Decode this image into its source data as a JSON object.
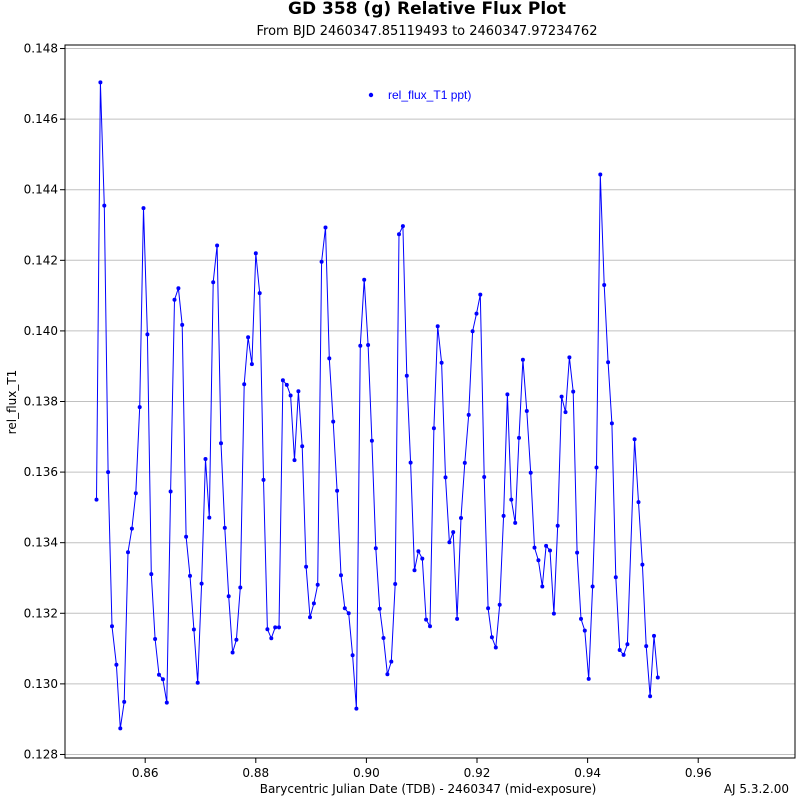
{
  "footer": {
    "version": "AJ 5.3.2.00"
  },
  "colors": {
    "series": "#0000ff",
    "grid": "#c0c0c0",
    "axis": "#000000"
  },
  "chart_data": {
    "type": "line",
    "title": "GD 358 (g) Relative Flux Plot",
    "subtitle": "From BJD 2460347.85119493 to 2460347.97234762",
    "xlabel": "Barycentric Julian Date (TDB) - 2460347 (mid-exposure)",
    "ylabel": "rel_flux_T1",
    "xlim": [
      0.8455,
      0.9775
    ],
    "ylim": [
      0.1279,
      0.1481
    ],
    "x_ticks": [
      0.86,
      0.88,
      0.9,
      0.92,
      0.94,
      0.96
    ],
    "x_tick_labels": [
      "0.86",
      "0.88",
      "0.90",
      "0.92",
      "0.94",
      "0.96"
    ],
    "y_ticks": [
      0.128,
      0.13,
      0.132,
      0.134,
      0.136,
      0.138,
      0.14,
      0.142,
      0.144,
      0.146,
      0.148
    ],
    "y_tick_labels": [
      "0.128",
      "0.130",
      "0.132",
      "0.134",
      "0.136",
      "0.138",
      "0.140",
      "0.142",
      "0.144",
      "0.146",
      "0.148"
    ],
    "grid": "horizontal",
    "legend_position": "top-center",
    "series": [
      {
        "name": "rel_flux_T1 ppt)",
        "color": "#0000ff",
        "points": [
          [
            0.8512,
            0.13522
          ],
          [
            0.8519,
            0.14704
          ],
          [
            0.8526,
            0.14355
          ],
          [
            0.8533,
            0.136
          ],
          [
            0.854,
            0.13163
          ],
          [
            0.8548,
            0.13054
          ],
          [
            0.8555,
            0.12874
          ],
          [
            0.8562,
            0.12949
          ],
          [
            0.8569,
            0.13373
          ],
          [
            0.8576,
            0.1344
          ],
          [
            0.8583,
            0.1354
          ],
          [
            0.859,
            0.13784
          ],
          [
            0.8597,
            0.14348
          ],
          [
            0.8604,
            0.1399
          ],
          [
            0.8611,
            0.13311
          ],
          [
            0.8618,
            0.13127
          ],
          [
            0.8625,
            0.13026
          ],
          [
            0.8632,
            0.13013
          ],
          [
            0.8639,
            0.12947
          ],
          [
            0.8646,
            0.13545
          ],
          [
            0.8653,
            0.14088
          ],
          [
            0.866,
            0.14121
          ],
          [
            0.8667,
            0.14017
          ],
          [
            0.8674,
            0.13417
          ],
          [
            0.8681,
            0.13306
          ],
          [
            0.8688,
            0.13154
          ],
          [
            0.8695,
            0.13003
          ],
          [
            0.8702,
            0.13284
          ],
          [
            0.8709,
            0.13637
          ],
          [
            0.8716,
            0.13471
          ],
          [
            0.8723,
            0.14138
          ],
          [
            0.873,
            0.14242
          ],
          [
            0.8737,
            0.13682
          ],
          [
            0.8744,
            0.13442
          ],
          [
            0.8751,
            0.13248
          ],
          [
            0.8758,
            0.13089
          ],
          [
            0.8765,
            0.13125
          ],
          [
            0.8772,
            0.13273
          ],
          [
            0.8779,
            0.13849
          ],
          [
            0.8786,
            0.13982
          ],
          [
            0.8793,
            0.13906
          ],
          [
            0.88,
            0.1422
          ],
          [
            0.8807,
            0.14107
          ],
          [
            0.8814,
            0.13578
          ],
          [
            0.8821,
            0.13155
          ],
          [
            0.8828,
            0.13129
          ],
          [
            0.8835,
            0.1316
          ],
          [
            0.8842,
            0.1316
          ],
          [
            0.8849,
            0.1386
          ],
          [
            0.8856,
            0.13847
          ],
          [
            0.8863,
            0.13817
          ],
          [
            0.887,
            0.13634
          ],
          [
            0.8877,
            0.13829
          ],
          [
            0.8884,
            0.13673
          ],
          [
            0.8891,
            0.13332
          ],
          [
            0.8898,
            0.13189
          ],
          [
            0.8905,
            0.13228
          ],
          [
            0.8912,
            0.13281
          ],
          [
            0.8919,
            0.14196
          ],
          [
            0.8926,
            0.14293
          ],
          [
            0.8933,
            0.13922
          ],
          [
            0.894,
            0.13743
          ],
          [
            0.8947,
            0.13547
          ],
          [
            0.8954,
            0.13308
          ],
          [
            0.8961,
            0.13214
          ],
          [
            0.8968,
            0.132
          ],
          [
            0.8975,
            0.13081
          ],
          [
            0.8982,
            0.1293
          ],
          [
            0.8989,
            0.13958
          ],
          [
            0.8996,
            0.14145
          ],
          [
            0.9003,
            0.1396
          ],
          [
            0.901,
            0.13689
          ],
          [
            0.9017,
            0.13384
          ],
          [
            0.9024,
            0.13213
          ],
          [
            0.9031,
            0.1313
          ],
          [
            0.9038,
            0.13027
          ],
          [
            0.9045,
            0.13063
          ],
          [
            0.9052,
            0.13283
          ],
          [
            0.9059,
            0.14274
          ],
          [
            0.9066,
            0.14297
          ],
          [
            0.9073,
            0.13873
          ],
          [
            0.908,
            0.13627
          ],
          [
            0.9087,
            0.13322
          ],
          [
            0.9094,
            0.13376
          ],
          [
            0.9101,
            0.13355
          ],
          [
            0.9108,
            0.13182
          ],
          [
            0.9115,
            0.13163
          ],
          [
            0.9122,
            0.13724
          ],
          [
            0.9129,
            0.14013
          ],
          [
            0.9136,
            0.1391
          ],
          [
            0.9143,
            0.13585
          ],
          [
            0.915,
            0.13401
          ],
          [
            0.9157,
            0.1343
          ],
          [
            0.9164,
            0.13184
          ],
          [
            0.9171,
            0.1347
          ],
          [
            0.9178,
            0.13626
          ],
          [
            0.9185,
            0.13762
          ],
          [
            0.9192,
            0.13999
          ],
          [
            0.9199,
            0.14049
          ],
          [
            0.9206,
            0.14103
          ],
          [
            0.9213,
            0.13586
          ],
          [
            0.922,
            0.13214
          ],
          [
            0.9227,
            0.13132
          ],
          [
            0.9234,
            0.13103
          ],
          [
            0.9241,
            0.13224
          ],
          [
            0.9248,
            0.13476
          ],
          [
            0.9255,
            0.1382
          ],
          [
            0.9262,
            0.13522
          ],
          [
            0.9269,
            0.13456
          ],
          [
            0.9276,
            0.13697
          ],
          [
            0.9283,
            0.13918
          ],
          [
            0.929,
            0.13773
          ],
          [
            0.9297,
            0.13598
          ],
          [
            0.9304,
            0.13386
          ],
          [
            0.9311,
            0.1335
          ],
          [
            0.9318,
            0.13276
          ],
          [
            0.9325,
            0.13391
          ],
          [
            0.9332,
            0.13378
          ],
          [
            0.9339,
            0.13199
          ],
          [
            0.9346,
            0.13448
          ],
          [
            0.9353,
            0.13814
          ],
          [
            0.936,
            0.1377
          ],
          [
            0.9367,
            0.13925
          ],
          [
            0.9374,
            0.13828
          ],
          [
            0.9381,
            0.13372
          ],
          [
            0.9388,
            0.13184
          ],
          [
            0.9395,
            0.13151
          ],
          [
            0.9402,
            0.13014
          ],
          [
            0.9409,
            0.13276
          ],
          [
            0.9416,
            0.13613
          ],
          [
            0.9423,
            0.14443
          ],
          [
            0.943,
            0.1413
          ],
          [
            0.9437,
            0.13911
          ],
          [
            0.9444,
            0.13738
          ],
          [
            0.9451,
            0.13302
          ],
          [
            0.9458,
            0.13096
          ],
          [
            0.9465,
            0.13082
          ],
          [
            0.9472,
            0.13112
          ],
          [
            0.9485,
            0.13693
          ],
          [
            0.9492,
            0.13515
          ],
          [
            0.9499,
            0.13338
          ],
          [
            0.9506,
            0.13107
          ],
          [
            0.9513,
            0.12965
          ],
          [
            0.952,
            0.13136
          ],
          [
            0.9527,
            0.13018
          ]
        ]
      }
    ]
  }
}
